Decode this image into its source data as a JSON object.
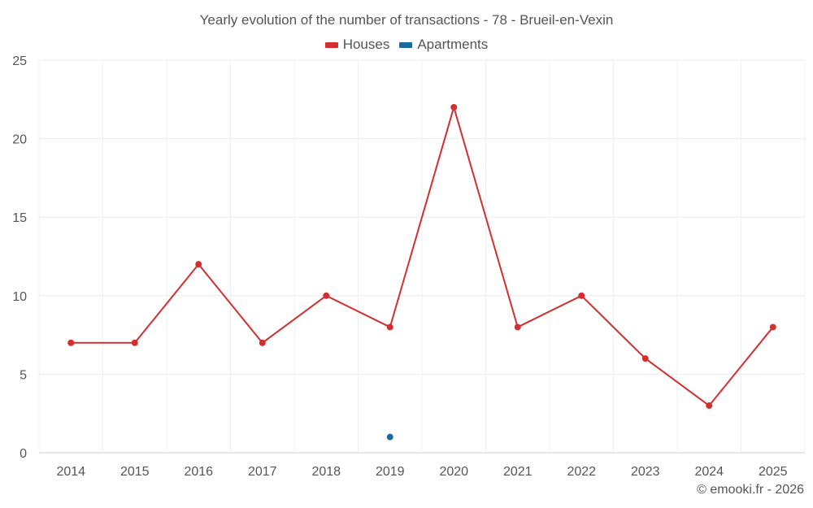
{
  "chart_data": {
    "type": "line",
    "title": "Yearly evolution of the number of transactions - 78 - Brueil-en-Vexin",
    "categories": [
      "2014",
      "2015",
      "2016",
      "2017",
      "2018",
      "2019",
      "2020",
      "2021",
      "2022",
      "2023",
      "2024",
      "2025"
    ],
    "series": [
      {
        "name": "Houses",
        "color": "#d32f2f",
        "values": [
          7,
          7,
          12,
          7,
          10,
          8,
          22,
          8,
          10,
          6,
          3,
          8
        ]
      },
      {
        "name": "Apartments",
        "color": "#1a6aa0",
        "values": [
          null,
          null,
          null,
          null,
          null,
          1,
          null,
          null,
          null,
          null,
          null,
          null
        ]
      }
    ],
    "ylim": [
      0,
      25
    ],
    "yticks": [
      0,
      5,
      10,
      15,
      20,
      25
    ],
    "ytick_labels": [
      "0",
      "5",
      "10",
      "15",
      "20",
      "25"
    ],
    "xlabel": "",
    "ylabel": "",
    "legend_position": "top-center",
    "grid": true
  },
  "credit": "© emooki.fr - 2026"
}
